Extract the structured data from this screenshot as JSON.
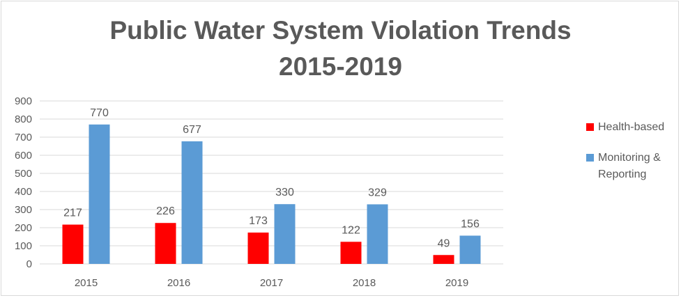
{
  "chart_data": {
    "type": "bar",
    "title_lines": [
      "Public Water System Violation Trends",
      "2015-2019"
    ],
    "categories": [
      "2015",
      "2016",
      "2017",
      "2018",
      "2019"
    ],
    "series": [
      {
        "name": "Health-based",
        "color": "#ff0000",
        "values": [
          217,
          226,
          173,
          122,
          49
        ]
      },
      {
        "name": "Monitoring & Reporting",
        "color": "#5b9bd5",
        "values": [
          770,
          677,
          330,
          329,
          156
        ]
      }
    ],
    "ylim": [
      0,
      900
    ],
    "yticks": [
      0,
      100,
      200,
      300,
      400,
      500,
      600,
      700,
      800,
      900
    ],
    "grid": true,
    "legend_position": "right",
    "data_labels": true
  },
  "colors": {
    "grid": "#d9d9d9",
    "text": "#595959"
  }
}
